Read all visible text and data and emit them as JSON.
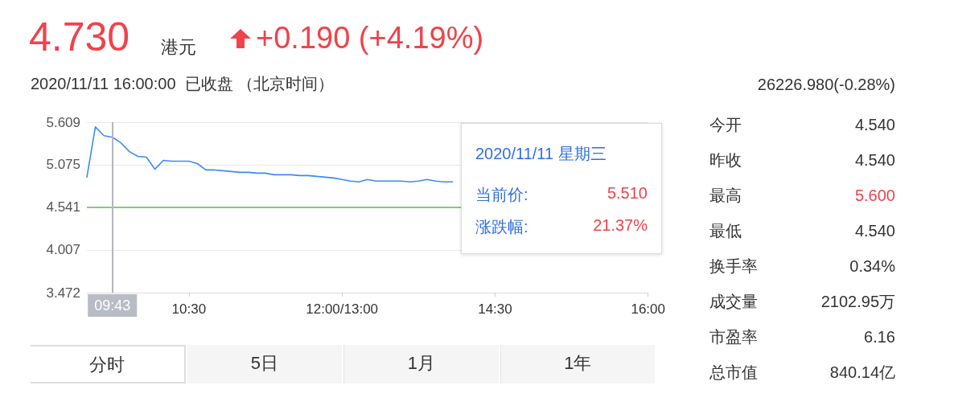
{
  "chart_data": [
    {
      "type": "other",
      "title": "4.730",
      "subtitle": "2020/11/11 16:00:00  已收盘 （北京时间）",
      "annotations": [
        "港元",
        "+0.190 (+4.19%)",
        "26226.980(-0.28%)"
      ]
    },
    {
      "type": "line",
      "color": "#3d8af7",
      "marker": "none",
      "line_style": "solid",
      "grid": "y",
      "categories": [
        null,
        null,
        null,
        null,
        null,
        null,
        null,
        null,
        null,
        null,
        null,
        null,
        "10:30",
        null,
        null,
        null,
        null,
        null,
        null,
        null,
        null,
        null,
        null,
        null,
        null,
        null,
        null,
        null,
        null,
        null,
        "12:00/13:00",
        null,
        null,
        null,
        null,
        null,
        null,
        null,
        null,
        null,
        null,
        null,
        null,
        null,
        null,
        null,
        null,
        null,
        "14:30",
        null,
        null,
        null,
        null,
        null,
        null,
        null,
        null,
        null,
        null,
        null,
        null,
        null,
        null,
        null,
        null,
        null,
        "16:00"
      ],
      "values": [
        4.92,
        5.55,
        5.44,
        5.42,
        5.35,
        5.24,
        5.18,
        5.17,
        5.02,
        5.13,
        5.12,
        5.12,
        5.12,
        5.09,
        5.01,
        5.01,
        5.0,
        4.99,
        4.98,
        4.98,
        4.97,
        4.97,
        4.95,
        4.95,
        4.95,
        4.94,
        4.94,
        4.93,
        4.92,
        4.91,
        4.89,
        4.87,
        4.86,
        4.89,
        4.87,
        4.87,
        4.87,
        4.87,
        4.86,
        4.87,
        4.89,
        4.87,
        4.86,
        4.86,
        null,
        null,
        null,
        null,
        null,
        null,
        null,
        null,
        null,
        null,
        null,
        null,
        null,
        null,
        null,
        null,
        null,
        null,
        null,
        null,
        null,
        null,
        null
      ],
      "ylim": [
        3.472,
        5.609
      ],
      "yticks": [
        3.472,
        4.007,
        4.541,
        5.075,
        5.609
      ],
      "ref_lines": [
        {
          "axis": "y",
          "value": 4.541,
          "color": "#7fcd7f"
        }
      ],
      "annotations": [
        "09:43",
        "2020/11/11 星期三",
        "当前价:",
        "5.510",
        "涨跌幅:",
        "21.37%"
      ]
    },
    {
      "type": "other",
      "categories": [
        "今开",
        "昨收",
        "最高",
        "最低",
        "换手率",
        "成交量",
        "市盈率",
        "总市值"
      ],
      "value_labels": [
        "4.540",
        "4.540",
        "5.600",
        "4.540",
        "0.34%",
        "2102.95万",
        "6.16",
        "840.14亿"
      ],
      "colors": [
        "#333333",
        "#333333",
        "#f0434a",
        "#333333",
        "#333333",
        "#333333",
        "#333333",
        "#333333"
      ]
    },
    {
      "type": "other",
      "categories": [
        "分时",
        "5日",
        "1月",
        "1年"
      ]
    }
  ]
}
